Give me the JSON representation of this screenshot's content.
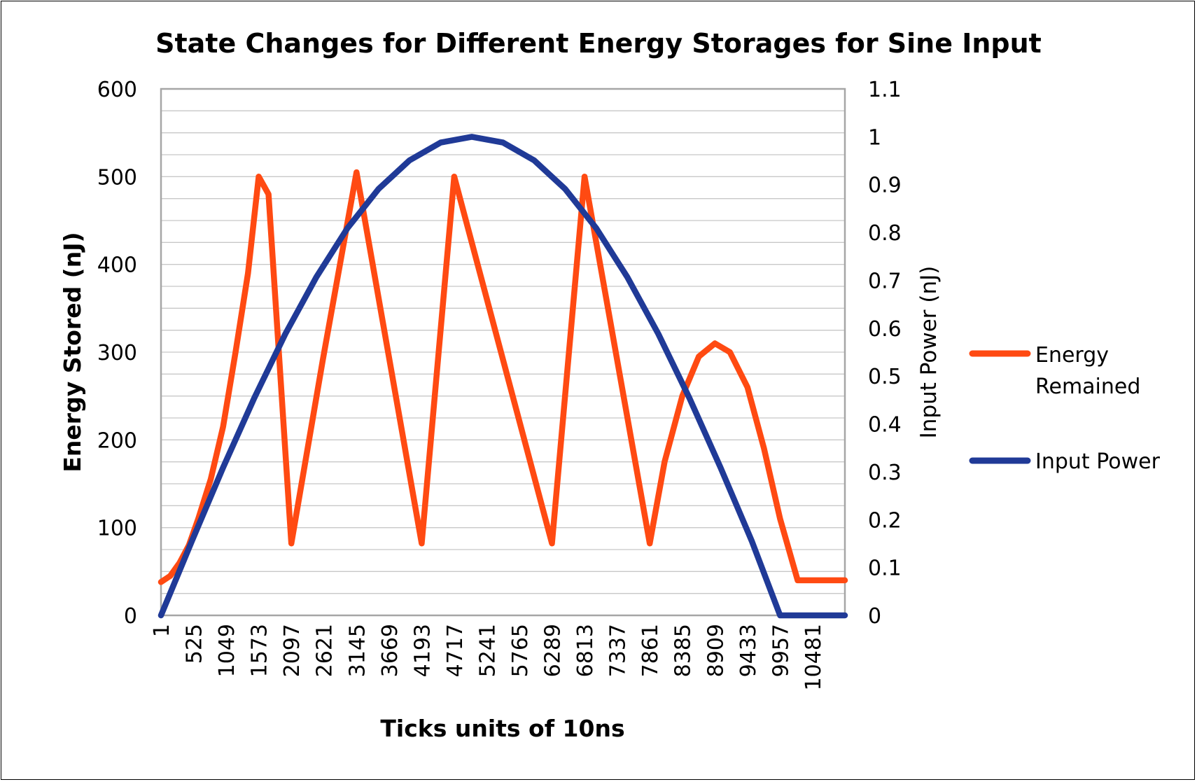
{
  "chart_data": {
    "type": "line",
    "title": "State Changes for Different Energy Storages for Sine Input",
    "xlabel": "Ticks units of 10ns",
    "ylabel": "Energy Stored (nJ)",
    "y2label": "Input Power (nJ)",
    "xlim": [
      1,
      11000
    ],
    "ylim": [
      0,
      600
    ],
    "y2lim": [
      0,
      1.1
    ],
    "y_ticks": [
      "0",
      "100",
      "200",
      "300",
      "400",
      "500",
      "600"
    ],
    "y2_ticks": [
      "0",
      "0.1",
      "0.2",
      "0.3",
      "0.4",
      "0.5",
      "0.6",
      "0.7",
      "0.8",
      "0.9",
      "1",
      "1.1"
    ],
    "x_ticks": [
      "1",
      "525",
      "1049",
      "1573",
      "2097",
      "2621",
      "3145",
      "3669",
      "4193",
      "4717",
      "5241",
      "5765",
      "6289",
      "6813",
      "7337",
      "7861",
      "8385",
      "8909",
      "9433",
      "9957",
      "10481"
    ],
    "grid": true,
    "legend_position": "right",
    "series": [
      {
        "name": "Energy Remained",
        "color": "#FF4A12",
        "axis": "left",
        "x": [
          1,
          150,
          300,
          450,
          600,
          800,
          1000,
          1200,
          1400,
          1573,
          1730,
          2097,
          2600,
          3145,
          4193,
          4717,
          6289,
          6813,
          7861,
          8100,
          8385,
          8650,
          8909,
          9150,
          9433,
          9700,
          9957,
          10240,
          10481,
          11000
        ],
        "y": [
          38,
          45,
          60,
          80,
          110,
          155,
          215,
          300,
          390,
          500,
          480,
          82,
          290,
          505,
          82,
          500,
          82,
          500,
          82,
          175,
          250,
          295,
          310,
          300,
          260,
          190,
          110,
          40,
          40,
          40
        ]
      },
      {
        "name": "Input Power",
        "color": "#203A97",
        "axis": "right",
        "x": [
          1,
          500,
          1000,
          1500,
          2000,
          2500,
          3000,
          3500,
          4000,
          4500,
          5000,
          5500,
          6000,
          6500,
          7000,
          7500,
          8000,
          8500,
          9000,
          9500,
          9957,
          10481,
          11000
        ],
        "y": [
          0.0,
          0.156,
          0.309,
          0.454,
          0.588,
          0.707,
          0.809,
          0.891,
          0.951,
          0.988,
          1.0,
          0.988,
          0.951,
          0.891,
          0.809,
          0.707,
          0.588,
          0.454,
          0.309,
          0.156,
          0.0,
          0.0,
          0.0
        ]
      }
    ]
  }
}
